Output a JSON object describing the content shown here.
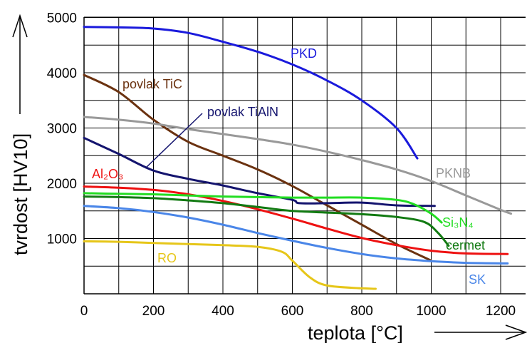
{
  "chart_data": {
    "type": "line",
    "xlabel": "teplota [°C]",
    "ylabel": "tvrdost [HV10]",
    "xlim": [
      0,
      1250
    ],
    "ylim": [
      0,
      5000
    ],
    "x_ticks": [
      "0",
      "200",
      "400",
      "600",
      "800",
      "1000",
      "1200"
    ],
    "y_ticks": [
      "1000",
      "2000",
      "3000",
      "4000",
      "5000"
    ],
    "grid": true,
    "series": [
      {
        "name": "PKD",
        "color": "#1a1adc",
        "points": [
          [
            0,
            4830
          ],
          [
            100,
            4820
          ],
          [
            200,
            4800
          ],
          [
            300,
            4720
          ],
          [
            400,
            4560
          ],
          [
            500,
            4380
          ],
          [
            600,
            4150
          ],
          [
            700,
            3860
          ],
          [
            800,
            3500
          ],
          [
            900,
            3000
          ],
          [
            960,
            2450
          ]
        ]
      },
      {
        "name": "povlak TiC",
        "color": "#6b3210",
        "points": [
          [
            0,
            3960
          ],
          [
            100,
            3650
          ],
          [
            200,
            3150
          ],
          [
            300,
            2750
          ],
          [
            400,
            2500
          ],
          [
            500,
            2250
          ],
          [
            600,
            1950
          ],
          [
            700,
            1600
          ],
          [
            800,
            1250
          ],
          [
            900,
            900
          ],
          [
            1000,
            600
          ]
        ]
      },
      {
        "name": "povlak TiAlN",
        "color": "#14146e",
        "points": [
          [
            0,
            2820
          ],
          [
            100,
            2530
          ],
          [
            200,
            2230
          ],
          [
            300,
            2080
          ],
          [
            400,
            1960
          ],
          [
            500,
            1820
          ],
          [
            600,
            1700
          ],
          [
            620,
            1640
          ],
          [
            700,
            1640
          ],
          [
            800,
            1650
          ],
          [
            900,
            1600
          ],
          [
            1010,
            1590
          ]
        ]
      },
      {
        "name": "PKNB",
        "color": "#999999",
        "points": [
          [
            0,
            3200
          ],
          [
            100,
            3150
          ],
          [
            200,
            3080
          ],
          [
            300,
            2980
          ],
          [
            400,
            2890
          ],
          [
            500,
            2800
          ],
          [
            600,
            2700
          ],
          [
            700,
            2570
          ],
          [
            800,
            2420
          ],
          [
            900,
            2250
          ],
          [
            1000,
            2040
          ],
          [
            1100,
            1780
          ],
          [
            1200,
            1520
          ],
          [
            1230,
            1450
          ]
        ]
      },
      {
        "name": "Al₂O₃",
        "color": "#ee1111",
        "points": [
          [
            0,
            1940
          ],
          [
            100,
            1920
          ],
          [
            200,
            1880
          ],
          [
            300,
            1800
          ],
          [
            400,
            1680
          ],
          [
            500,
            1530
          ],
          [
            600,
            1360
          ],
          [
            700,
            1180
          ],
          [
            800,
            1010
          ],
          [
            900,
            880
          ],
          [
            1000,
            780
          ],
          [
            1100,
            730
          ],
          [
            1220,
            720
          ]
        ]
      },
      {
        "name": "Si₃N₄",
        "color": "#22dd22",
        "points": [
          [
            0,
            1820
          ],
          [
            100,
            1810
          ],
          [
            200,
            1800
          ],
          [
            300,
            1780
          ],
          [
            400,
            1760
          ],
          [
            500,
            1750
          ],
          [
            600,
            1740
          ],
          [
            700,
            1740
          ],
          [
            800,
            1740
          ],
          [
            900,
            1700
          ],
          [
            950,
            1620
          ],
          [
            1000,
            1450
          ],
          [
            1030,
            1290
          ]
        ]
      },
      {
        "name": "cermet",
        "color": "#127a12",
        "points": [
          [
            0,
            1760
          ],
          [
            100,
            1750
          ],
          [
            200,
            1730
          ],
          [
            300,
            1690
          ],
          [
            400,
            1640
          ],
          [
            500,
            1570
          ],
          [
            600,
            1500
          ],
          [
            700,
            1470
          ],
          [
            800,
            1440
          ],
          [
            900,
            1390
          ],
          [
            980,
            1300
          ],
          [
            1020,
            1100
          ],
          [
            1050,
            870
          ]
        ]
      },
      {
        "name": "SK",
        "color": "#4a86e8",
        "points": [
          [
            0,
            1590
          ],
          [
            100,
            1550
          ],
          [
            200,
            1480
          ],
          [
            300,
            1380
          ],
          [
            400,
            1250
          ],
          [
            500,
            1100
          ],
          [
            600,
            960
          ],
          [
            700,
            830
          ],
          [
            800,
            720
          ],
          [
            900,
            640
          ],
          [
            1000,
            590
          ],
          [
            1100,
            560
          ],
          [
            1220,
            550
          ]
        ]
      },
      {
        "name": "RO",
        "color": "#e6c619",
        "points": [
          [
            0,
            950
          ],
          [
            100,
            940
          ],
          [
            200,
            920
          ],
          [
            300,
            900
          ],
          [
            400,
            880
          ],
          [
            500,
            850
          ],
          [
            570,
            760
          ],
          [
            600,
            600
          ],
          [
            650,
            300
          ],
          [
            700,
            150
          ],
          [
            800,
            100
          ],
          [
            840,
            90
          ]
        ]
      }
    ]
  }
}
